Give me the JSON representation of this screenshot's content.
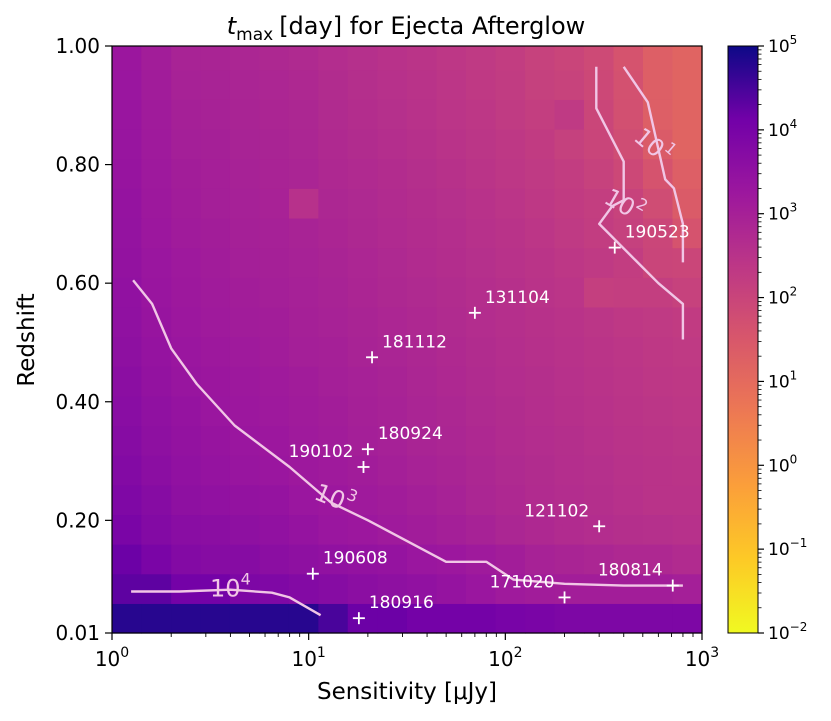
{
  "chart_data": {
    "type": "heatmap",
    "title": "t_max [day] for Ejecta Afterglow",
    "title_parts": {
      "symbol": "t",
      "subscript": "max",
      "rest": "[day] for Ejecta Afterglow"
    },
    "xlabel": "Sensitivity [μJy]",
    "ylabel": "Redshift",
    "x_scale": "log",
    "xlim": [
      1,
      1000
    ],
    "ylim": [
      0.01,
      1.0
    ],
    "x_ticks": [
      {
        "value": 1,
        "base": "10",
        "exp": "0"
      },
      {
        "value": 10,
        "base": "10",
        "exp": "1"
      },
      {
        "value": 100,
        "base": "10",
        "exp": "2"
      },
      {
        "value": 1000,
        "base": "10",
        "exp": "3"
      }
    ],
    "y_ticks": [
      {
        "value": 0.01,
        "label": "0.01"
      },
      {
        "value": 0.2,
        "label": "0.20"
      },
      {
        "value": 0.4,
        "label": "0.40"
      },
      {
        "value": 0.6,
        "label": "0.60"
      },
      {
        "value": 0.8,
        "label": "0.80"
      },
      {
        "value": 1.0,
        "label": "1.00"
      }
    ],
    "colorbar": {
      "scale": "log",
      "colormap": "plasma_r",
      "range": [
        0.01,
        100000
      ],
      "ticks": [
        {
          "value": 100000,
          "base": "10",
          "exp": "5"
        },
        {
          "value": 10000,
          "base": "10",
          "exp": "4"
        },
        {
          "value": 1000,
          "base": "10",
          "exp": "3"
        },
        {
          "value": 100,
          "base": "10",
          "exp": "2"
        },
        {
          "value": 10,
          "base": "10",
          "exp": "1"
        },
        {
          "value": 1,
          "base": "10",
          "exp": "0"
        },
        {
          "value": 0.1,
          "base": "10",
          "exp": "−1"
        },
        {
          "value": 0.01,
          "base": "10",
          "exp": "−2"
        }
      ]
    },
    "grid": {
      "x_edges": [
        1.0,
        1.41,
        2.0,
        2.82,
        3.98,
        5.62,
        7.94,
        11.2,
        15.8,
        22.4,
        31.6,
        44.7,
        63.1,
        89.1,
        125.9,
        177.8,
        251.2,
        354.8,
        501.2,
        707.9,
        1000
      ],
      "y_edges": [
        0.01,
        0.06,
        0.11,
        0.16,
        0.21,
        0.26,
        0.31,
        0.36,
        0.41,
        0.46,
        0.51,
        0.56,
        0.61,
        0.66,
        0.71,
        0.76,
        0.81,
        0.86,
        0.91,
        0.96,
        1.0
      ],
      "z": [
        [
          60000,
          60000,
          60000,
          60000,
          60000,
          60000,
          60000,
          30000,
          15000,
          15000,
          12000,
          12000,
          12000,
          10000,
          9000,
          8000,
          8000,
          8000,
          8000,
          8000
        ],
        [
          20000,
          20000,
          12000,
          12000,
          8000,
          7000,
          6000,
          5000,
          4000,
          3500,
          3000,
          2500,
          2000,
          1500,
          1300,
          1200,
          1200,
          1200,
          1200,
          1100
        ],
        [
          15000,
          9000,
          6000,
          5000,
          5000,
          4000,
          3500,
          3000,
          2800,
          2500,
          2000,
          1800,
          1500,
          1200,
          900,
          800,
          700,
          600,
          600,
          500
        ],
        [
          9000,
          6000,
          4500,
          4000,
          3500,
          3000,
          2500,
          2000,
          1800,
          1500,
          1300,
          1100,
          900,
          700,
          600,
          500,
          450,
          400,
          380,
          350
        ],
        [
          7000,
          5000,
          3500,
          3000,
          2800,
          2500,
          2000,
          1800,
          1500,
          1300,
          1100,
          900,
          700,
          600,
          500,
          450,
          400,
          350,
          300,
          300
        ],
        [
          6000,
          4000,
          3000,
          2500,
          2200,
          2000,
          1700,
          1500,
          1300,
          1100,
          900,
          800,
          650,
          550,
          480,
          420,
          380,
          330,
          300,
          280
        ],
        [
          5000,
          3500,
          2800,
          2300,
          2000,
          1800,
          1500,
          1300,
          1100,
          950,
          800,
          700,
          600,
          500,
          450,
          400,
          350,
          300,
          280,
          260
        ],
        [
          4500,
          3200,
          2500,
          2000,
          1800,
          1600,
          1400,
          1200,
          1000,
          900,
          750,
          650,
          550,
          480,
          420,
          370,
          330,
          290,
          260,
          240
        ],
        [
          4000,
          2800,
          2200,
          1900,
          1700,
          1500,
          1300,
          1100,
          950,
          850,
          700,
          600,
          520,
          450,
          400,
          350,
          300,
          270,
          240,
          220
        ],
        [
          3500,
          2500,
          2000,
          1700,
          1500,
          1300,
          1100,
          1000,
          850,
          750,
          650,
          560,
          480,
          420,
          370,
          320,
          280,
          250,
          220,
          200
        ],
        [
          3200,
          2300,
          1800,
          1500,
          1300,
          1200,
          1000,
          900,
          780,
          680,
          600,
          520,
          450,
          390,
          340,
          300,
          260,
          220,
          200,
          180
        ],
        [
          3000,
          2100,
          1700,
          1400,
          1200,
          1100,
          950,
          850,
          720,
          620,
          550,
          480,
          420,
          360,
          310,
          270,
          140,
          150,
          150,
          120
        ],
        [
          2800,
          2000,
          1600,
          1300,
          1100,
          1000,
          900,
          780,
          680,
          580,
          500,
          440,
          380,
          330,
          280,
          230,
          200,
          160,
          100,
          90
        ],
        [
          2600,
          1800,
          1400,
          1200,
          1000,
          950,
          850,
          720,
          620,
          540,
          470,
          410,
          350,
          300,
          250,
          200,
          160,
          130,
          90,
          40
        ],
        [
          2500,
          1700,
          1300,
          1100,
          950,
          880,
          350,
          650,
          580,
          500,
          440,
          380,
          320,
          270,
          220,
          180,
          150,
          110,
          60,
          25
        ],
        [
          2300,
          1600,
          1200,
          1050,
          900,
          820,
          750,
          600,
          530,
          460,
          400,
          340,
          290,
          240,
          200,
          160,
          120,
          80,
          40,
          20
        ],
        [
          2200,
          1500,
          1100,
          1000,
          850,
          780,
          700,
          560,
          480,
          420,
          360,
          300,
          260,
          220,
          180,
          130,
          100,
          60,
          25,
          15
        ],
        [
          2100,
          1400,
          1000,
          900,
          800,
          720,
          650,
          520,
          440,
          380,
          320,
          270,
          230,
          190,
          150,
          200,
          90,
          50,
          20,
          15
        ],
        [
          2000,
          1300,
          900,
          850,
          750,
          680,
          600,
          480,
          400,
          350,
          300,
          250,
          210,
          170,
          130,
          110,
          80,
          45,
          20,
          15
        ],
        [
          1900,
          1200,
          850,
          800,
          700,
          620,
          550,
          450,
          380,
          330,
          280,
          240,
          200,
          160,
          120,
          100,
          70,
          40,
          20,
          15
        ]
      ]
    },
    "contours": [
      {
        "label": "10",
        "label_exp": "4",
        "level": 10000,
        "points": [
          [
            1.25,
            0.08
          ],
          [
            2.2,
            0.08
          ],
          [
            4.0,
            0.083
          ],
          [
            6.5,
            0.078
          ],
          [
            8.0,
            0.07
          ],
          [
            11.5,
            0.04
          ]
        ]
      },
      {
        "label": "10",
        "label_exp": "3",
        "level": 1000,
        "points": [
          [
            1.28,
            0.605
          ],
          [
            1.6,
            0.565
          ],
          [
            2.0,
            0.49
          ],
          [
            2.7,
            0.43
          ],
          [
            4.2,
            0.36
          ],
          [
            8.0,
            0.29
          ],
          [
            13.0,
            0.23
          ],
          [
            20.0,
            0.2
          ],
          [
            50.0,
            0.13
          ],
          [
            80.0,
            0.13
          ],
          [
            110.0,
            0.1
          ],
          [
            200.0,
            0.093
          ],
          [
            400.0,
            0.09
          ],
          [
            800.0,
            0.09
          ]
        ]
      },
      {
        "label": "10",
        "label_exp": "2",
        "level": 100,
        "points": [
          [
            290.0,
            0.965
          ],
          [
            290.0,
            0.895
          ],
          [
            400.0,
            0.805
          ],
          [
            400.0,
            0.74
          ],
          [
            350.0,
            0.73
          ],
          [
            300.0,
            0.7
          ],
          [
            600.0,
            0.6
          ],
          [
            800.0,
            0.565
          ],
          [
            800.0,
            0.505
          ]
        ]
      },
      {
        "label": "10",
        "label_exp": "1",
        "level": 10,
        "points": [
          [
            400.0,
            0.965
          ],
          [
            530.0,
            0.905
          ],
          [
            650.0,
            0.775
          ],
          [
            720.0,
            0.76
          ],
          [
            800.0,
            0.7
          ],
          [
            800.0,
            0.635
          ]
        ]
      }
    ],
    "points": [
      {
        "label": "190523",
        "x": 360,
        "y": 0.66
      },
      {
        "label": "131104",
        "x": 70,
        "y": 0.55
      },
      {
        "label": "181112",
        "x": 21,
        "y": 0.475
      },
      {
        "label": "180924",
        "x": 20,
        "y": 0.32
      },
      {
        "label": "190102",
        "x": 19,
        "y": 0.29
      },
      {
        "label": "121102",
        "x": 300,
        "y": 0.19
      },
      {
        "label": "190608",
        "x": 10.5,
        "y": 0.11
      },
      {
        "label": "180814",
        "x": 710,
        "y": 0.09
      },
      {
        "label": "171020",
        "x": 200,
        "y": 0.07
      },
      {
        "label": "180916",
        "x": 18,
        "y": 0.035
      }
    ]
  }
}
